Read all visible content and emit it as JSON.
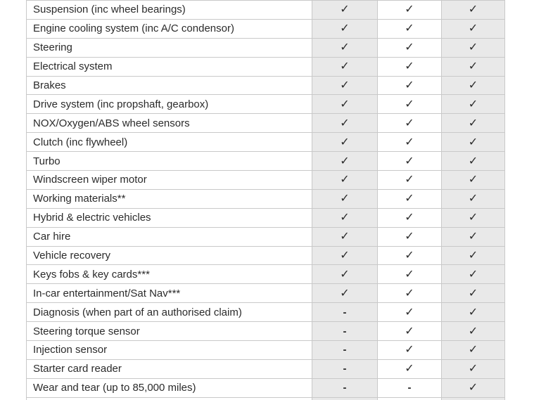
{
  "colors": {
    "shaded_cell": "#e9e9e9",
    "border": "#c9c9c9",
    "text": "#2b2b2b",
    "page_background": "#ffffff"
  },
  "symbols": {
    "check": "✓",
    "dash": "-"
  },
  "table": {
    "columns": [
      {
        "key": "col1",
        "shaded": true
      },
      {
        "key": "col2",
        "shaded": false
      },
      {
        "key": "col3",
        "shaded": true
      }
    ],
    "rows": [
      {
        "feature": "Suspension (inc wheel bearings)",
        "values": [
          "check",
          "check",
          "check"
        ]
      },
      {
        "feature": "Engine cooling system (inc A/C condensor)",
        "values": [
          "check",
          "check",
          "check"
        ]
      },
      {
        "feature": "Steering",
        "values": [
          "check",
          "check",
          "check"
        ]
      },
      {
        "feature": "Electrical system",
        "values": [
          "check",
          "check",
          "check"
        ]
      },
      {
        "feature": "Brakes",
        "values": [
          "check",
          "check",
          "check"
        ]
      },
      {
        "feature": "Drive system (inc propshaft, gearbox)",
        "values": [
          "check",
          "check",
          "check"
        ]
      },
      {
        "feature": "NOX/Oxygen/ABS wheel sensors",
        "values": [
          "check",
          "check",
          "check"
        ]
      },
      {
        "feature": "Clutch (inc flywheel)",
        "values": [
          "check",
          "check",
          "check"
        ]
      },
      {
        "feature": "Turbo",
        "values": [
          "check",
          "check",
          "check"
        ]
      },
      {
        "feature": "Windscreen wiper motor",
        "values": [
          "check",
          "check",
          "check"
        ]
      },
      {
        "feature": "Working materials**",
        "values": [
          "check",
          "check",
          "check"
        ]
      },
      {
        "feature": "Hybrid & electric vehicles",
        "values": [
          "check",
          "check",
          "check"
        ]
      },
      {
        "feature": "Car hire",
        "values": [
          "check",
          "check",
          "check"
        ]
      },
      {
        "feature": "Vehicle recovery",
        "values": [
          "check",
          "check",
          "check"
        ]
      },
      {
        "feature": "Keys fobs & key cards***",
        "values": [
          "check",
          "check",
          "check"
        ]
      },
      {
        "feature": "In-car entertainment/Sat Nav***",
        "values": [
          "check",
          "check",
          "check"
        ]
      },
      {
        "feature": "Diagnosis (when part of an authorised claim)",
        "values": [
          "dash",
          "check",
          "check"
        ]
      },
      {
        "feature": "Steering torque sensor",
        "values": [
          "dash",
          "check",
          "check"
        ]
      },
      {
        "feature": "Injection sensor",
        "values": [
          "dash",
          "check",
          "check"
        ]
      },
      {
        "feature": "Starter card reader",
        "values": [
          "dash",
          "check",
          "check"
        ]
      },
      {
        "feature": "Wear and tear (up to 85,000 miles)",
        "values": [
          "dash",
          "dash",
          "check"
        ]
      }
    ]
  }
}
